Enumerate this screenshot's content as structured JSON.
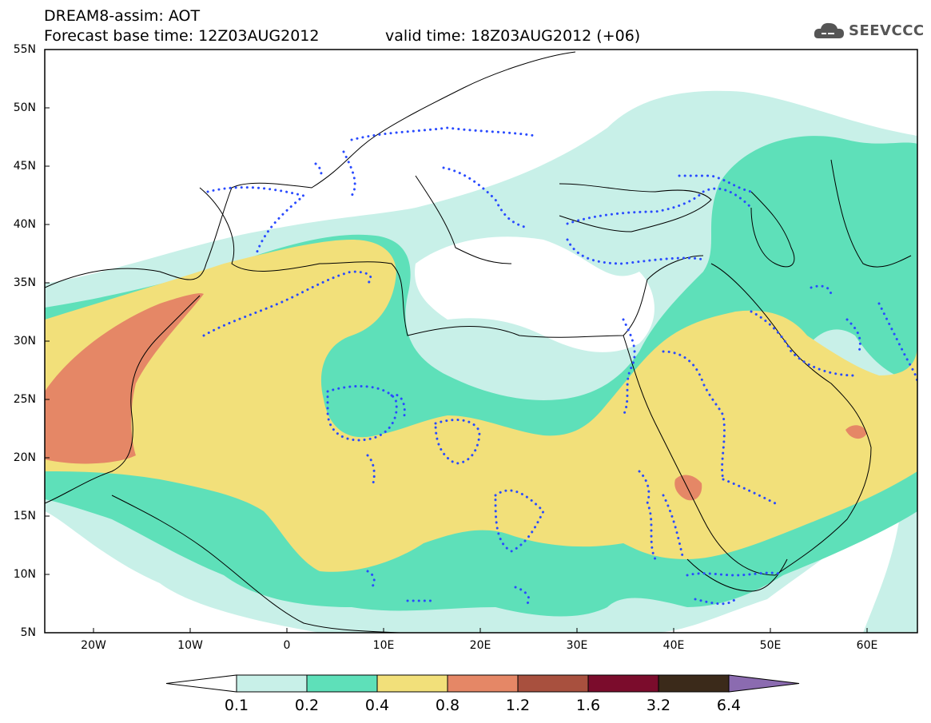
{
  "title": {
    "line1": "DREAM8-assim: AOT",
    "line2": "Forecast base time: 12Z03AUG2012",
    "valid": "valid time: 18Z03AUG2012 (+06)"
  },
  "logo": {
    "text": "SEEVCCC",
    "icon": "cloud-icon"
  },
  "axes": {
    "y_labels": [
      "55N",
      "50N",
      "45N",
      "40N",
      "35N",
      "30N",
      "25N",
      "20N",
      "15N",
      "10N",
      "5N"
    ],
    "x_labels": [
      "20W",
      "10W",
      "0",
      "10E",
      "20E",
      "30E",
      "40E",
      "50E",
      "60E"
    ]
  },
  "colorbar": {
    "labels": [
      "0.1",
      "0.2",
      "0.4",
      "0.8",
      "1.2",
      "1.6",
      "3.2",
      "6.4"
    ],
    "colors": [
      "#ffffff",
      "#c8f0e8",
      "#5ee0b9",
      "#f2e07a",
      "#e58766",
      "#a8503e",
      "#7b0c2c",
      "#3b2a1a",
      "#8b6bb0"
    ]
  },
  "map": {
    "extent": {
      "lon": [
        -25,
        65
      ],
      "lat": [
        5,
        55
      ]
    },
    "field": "AOT",
    "contour_line_color": "#2a4bff"
  }
}
